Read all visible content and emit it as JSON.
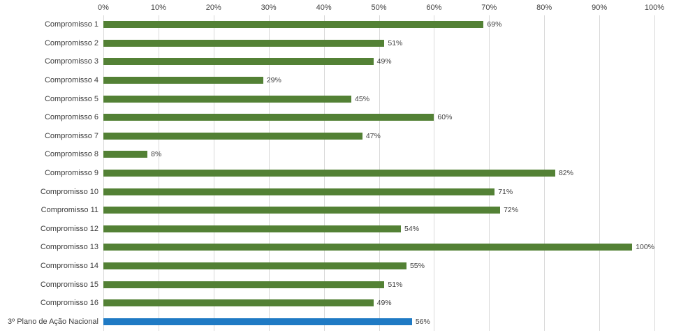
{
  "chart_data": {
    "type": "bar",
    "orientation": "horizontal",
    "title": "",
    "xlabel": "",
    "ylabel": "",
    "xlim": [
      0,
      100
    ],
    "grid": true,
    "tick_labels": [
      "0%",
      "10%",
      "20%",
      "30%",
      "40%",
      "50%",
      "60%",
      "70%",
      "80%",
      "90%",
      "100%"
    ],
    "tick_values": [
      0,
      10,
      20,
      30,
      40,
      50,
      60,
      70,
      80,
      90,
      100
    ],
    "categories": [
      "Compromisso 1",
      "Compromisso 2",
      "Compromisso 3",
      "Compromisso 4",
      "Compromisso 5",
      "Compromisso 6",
      "Compromisso 7",
      "Compromisso 8",
      "Compromisso 9",
      "Compromisso 10",
      "Compromisso 11",
      "Compromisso 12",
      "Compromisso 13",
      "Compromisso 14",
      "Compromisso 15",
      "Compromisso 16",
      "3º Plano de Ação Nacional"
    ],
    "values": [
      69,
      51,
      49,
      29,
      45,
      60,
      47,
      8,
      82,
      71,
      72,
      54,
      100,
      55,
      51,
      49,
      56
    ],
    "value_labels": [
      "69%",
      "51%",
      "49%",
      "29%",
      "45%",
      "60%",
      "47%",
      "8%",
      "82%",
      "71%",
      "72%",
      "54%",
      "100%",
      "55%",
      "51%",
      "49%",
      "56%"
    ],
    "bar_color": "#538135",
    "highlight_color": "#1f7ac4",
    "highlight_index": 16,
    "gridline_color": "#d9d9d9"
  }
}
